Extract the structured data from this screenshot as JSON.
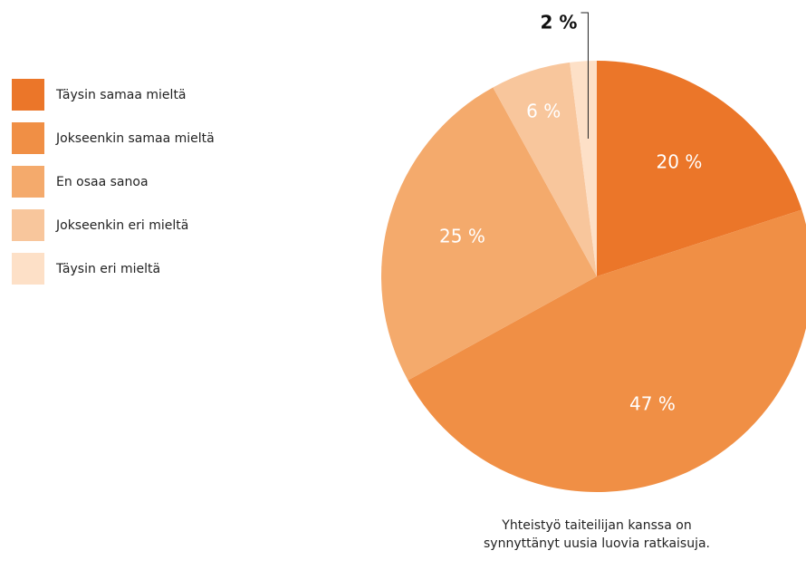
{
  "chart_data": {
    "type": "pie",
    "title": "Yhteistyö taiteilijan kanssa on synnyttänyt uusia luovia ratkaisuja.",
    "categories": [
      "Täysin samaa mieltä",
      "Jokseenkin samaa mieltä",
      "En osaa sanoa",
      "Jokseenkin eri mieltä",
      "Täysin eri mieltä"
    ],
    "values": [
      20,
      47,
      25,
      6,
      2
    ],
    "value_labels": [
      "20 %",
      "47 %",
      "25 %",
      "6 %",
      "2 %"
    ],
    "colors": [
      "#eb7629",
      "#f08f45",
      "#f4aa6c",
      "#f8c69c",
      "#fde0c7"
    ],
    "legend": "left"
  }
}
